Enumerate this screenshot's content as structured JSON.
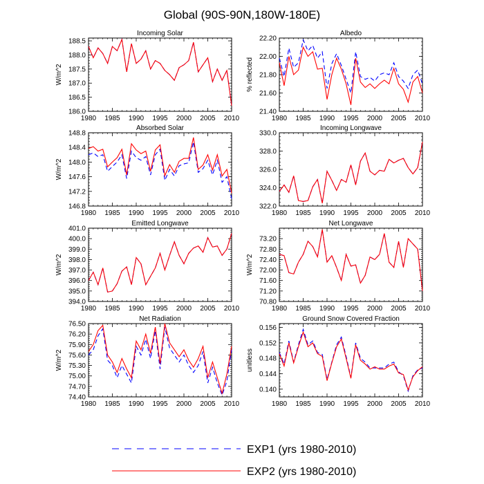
{
  "figure_title": "Global (90S-90N,180W-180E)",
  "legend": [
    {
      "label": "EXP1 (yrs 1980-2010)",
      "color": "#0000ff",
      "style": "dashed"
    },
    {
      "label": "EXP2 (yrs 1980-2010)",
      "color": "#ff0000",
      "style": "solid"
    }
  ],
  "chart_data": [
    {
      "type": "line",
      "title": "Incoming Solar",
      "xlabel": "",
      "ylabel": "W/m^2",
      "xlim": [
        1980,
        2010
      ],
      "ylim": [
        186.0,
        188.6
      ],
      "yticks": [
        "186.0",
        "186.5",
        "187.0",
        "187.5",
        "188.0",
        "188.5"
      ],
      "xticks": [
        "1980",
        "1985",
        "1990",
        "1995",
        "2000",
        "2005",
        "2010"
      ],
      "x": [
        1980,
        1981,
        1982,
        1983,
        1984,
        1985,
        1986,
        1987,
        1988,
        1989,
        1990,
        1991,
        1992,
        1993,
        1994,
        1995,
        1996,
        1997,
        1998,
        1999,
        2000,
        2001,
        2002,
        2003,
        2004,
        2005,
        2006,
        2007,
        2008,
        2009,
        2010
      ],
      "series": [
        {
          "name": "EXP1",
          "values": [
            188.3,
            187.9,
            188.25,
            188.05,
            187.7,
            188.3,
            188.15,
            188.55,
            187.4,
            188.4,
            187.7,
            187.85,
            188.15,
            187.5,
            187.8,
            187.7,
            187.45,
            187.3,
            187.1,
            187.55,
            187.65,
            187.8,
            188.45,
            187.4,
            187.65,
            187.9,
            187.05,
            187.5,
            187.1,
            187.45,
            186.2
          ]
        },
        {
          "name": "EXP2",
          "values": [
            188.3,
            187.9,
            188.25,
            188.05,
            187.7,
            188.3,
            188.15,
            188.55,
            187.4,
            188.4,
            187.7,
            187.85,
            188.15,
            187.5,
            187.8,
            187.7,
            187.45,
            187.3,
            187.1,
            187.55,
            187.65,
            187.8,
            188.45,
            187.4,
            187.65,
            187.9,
            187.05,
            187.5,
            187.1,
            187.45,
            186.2
          ]
        }
      ]
    },
    {
      "type": "line",
      "title": "Albedo",
      "xlabel": "",
      "ylabel": "% reflected",
      "xlim": [
        1980,
        2010
      ],
      "ylim": [
        21.4,
        22.2
      ],
      "yticks": [
        "21.40",
        "21.60",
        "21.80",
        "22.00",
        "22.20"
      ],
      "xticks": [
        "1980",
        "1985",
        "1990",
        "1995",
        "2000",
        "2005",
        "2010"
      ],
      "x": [
        1980,
        1981,
        1982,
        1983,
        1984,
        1985,
        1986,
        1987,
        1988,
        1989,
        1990,
        1991,
        1992,
        1993,
        1994,
        1995,
        1996,
        1997,
        1998,
        1999,
        2000,
        2001,
        2002,
        2003,
        2004,
        2005,
        2006,
        2007,
        2008,
        2009,
        2010
      ],
      "series": [
        {
          "name": "EXP1",
          "values": [
            21.98,
            21.78,
            22.09,
            21.88,
            21.93,
            22.18,
            22.06,
            22.12,
            21.98,
            22.05,
            21.65,
            21.92,
            22.03,
            21.9,
            21.75,
            21.6,
            22.05,
            21.78,
            21.75,
            21.77,
            21.73,
            21.8,
            21.82,
            21.8,
            21.93,
            21.78,
            21.73,
            21.65,
            21.8,
            21.85,
            21.7
          ]
        },
        {
          "name": "EXP2",
          "values": [
            21.93,
            21.68,
            22.0,
            21.8,
            21.85,
            22.1,
            22.0,
            22.05,
            21.86,
            21.87,
            21.53,
            21.8,
            21.98,
            21.86,
            21.7,
            21.47,
            21.98,
            21.72,
            21.66,
            21.7,
            21.65,
            21.7,
            21.74,
            21.7,
            21.87,
            21.7,
            21.64,
            21.5,
            21.72,
            21.78,
            21.6
          ]
        }
      ]
    },
    {
      "type": "line",
      "title": "Absorbed Solar",
      "xlabel": "",
      "ylabel": "W/m^2",
      "xlim": [
        1980,
        2010
      ],
      "ylim": [
        146.8,
        148.8
      ],
      "yticks": [
        "146.8",
        "147.2",
        "147.6",
        "148.0",
        "148.4",
        "148.8"
      ],
      "xticks": [
        "1980",
        "1985",
        "1990",
        "1995",
        "2000",
        "2005",
        "2010"
      ],
      "x": [
        1980,
        1981,
        1982,
        1983,
        1984,
        1985,
        1986,
        1987,
        1988,
        1989,
        1990,
        1991,
        1992,
        1993,
        1994,
        1995,
        1996,
        1997,
        1998,
        1999,
        2000,
        2001,
        2002,
        2003,
        2004,
        2005,
        2006,
        2007,
        2008,
        2009,
        2010
      ],
      "series": [
        {
          "name": "EXP1",
          "values": [
            148.2,
            148.25,
            148.15,
            148.2,
            147.75,
            147.88,
            148.0,
            148.2,
            147.55,
            148.3,
            148.12,
            148.05,
            148.15,
            147.65,
            148.2,
            148.35,
            147.5,
            147.8,
            147.62,
            147.9,
            147.95,
            147.98,
            148.55,
            147.72,
            147.82,
            148.05,
            147.65,
            148.05,
            147.45,
            147.6,
            147.0
          ]
        },
        {
          "name": "EXP2",
          "values": [
            148.37,
            148.42,
            148.3,
            148.35,
            147.87,
            148.0,
            148.12,
            148.35,
            147.65,
            148.5,
            148.33,
            148.23,
            148.3,
            147.75,
            148.33,
            148.47,
            147.63,
            147.93,
            147.72,
            148.02,
            148.1,
            148.1,
            148.67,
            147.8,
            147.92,
            148.2,
            147.78,
            148.2,
            147.62,
            147.8,
            147.15
          ]
        }
      ]
    },
    {
      "type": "line",
      "title": "Incoming Longwave",
      "xlabel": "",
      "ylabel": "",
      "xlim": [
        1980,
        2010
      ],
      "ylim": [
        322.0,
        330.0
      ],
      "yticks": [
        "322.0",
        "324.0",
        "326.0",
        "328.0",
        "330.0"
      ],
      "xticks": [
        "1980",
        "1985",
        "1990",
        "1995",
        "2000",
        "2005",
        "2010"
      ],
      "x": [
        1980,
        1981,
        1982,
        1983,
        1984,
        1985,
        1986,
        1987,
        1988,
        1989,
        1990,
        1991,
        1992,
        1993,
        1994,
        1995,
        1996,
        1997,
        1998,
        1999,
        2000,
        2001,
        2002,
        2003,
        2004,
        2005,
        2006,
        2007,
        2008,
        2009,
        2010
      ],
      "series": [
        {
          "name": "EXP1",
          "values": [
            323.6,
            324.3,
            323.5,
            325.3,
            322.6,
            322.5,
            322.6,
            324.1,
            324.9,
            322.3,
            325.8,
            324.8,
            323.7,
            324.9,
            324.6,
            326.5,
            324.3,
            326.9,
            327.8,
            325.8,
            325.4,
            325.9,
            325.8,
            327.1,
            326.7,
            327.0,
            327.2,
            326.2,
            325.5,
            326.2,
            329.0
          ]
        },
        {
          "name": "EXP2",
          "values": [
            323.6,
            324.3,
            323.5,
            325.3,
            322.6,
            322.5,
            322.6,
            324.1,
            324.9,
            322.3,
            325.8,
            324.8,
            323.7,
            324.9,
            324.6,
            326.5,
            324.3,
            326.9,
            327.8,
            325.8,
            325.4,
            325.9,
            325.8,
            327.1,
            326.7,
            327.0,
            327.2,
            326.2,
            325.5,
            326.2,
            329.0
          ]
        }
      ]
    },
    {
      "type": "line",
      "title": "Emitted Longwave",
      "xlabel": "",
      "ylabel": "W/m^2",
      "xlim": [
        1980,
        2010
      ],
      "ylim": [
        394.0,
        401.0
      ],
      "yticks": [
        "394.0",
        "395.0",
        "396.0",
        "397.0",
        "398.0",
        "399.0",
        "400.0",
        "401.0"
      ],
      "xticks": [
        "1980",
        "1985",
        "1990",
        "1995",
        "2000",
        "2005",
        "2010"
      ],
      "x": [
        1980,
        1981,
        1982,
        1983,
        1984,
        1985,
        1986,
        1987,
        1988,
        1989,
        1990,
        1991,
        1992,
        1993,
        1994,
        1995,
        1996,
        1997,
        1998,
        1999,
        2000,
        2001,
        2002,
        2003,
        2004,
        2005,
        2006,
        2007,
        2008,
        2009,
        2010
      ],
      "series": [
        {
          "name": "EXP1",
          "values": [
            396.0,
            396.8,
            395.6,
            397.2,
            394.9,
            395.0,
            395.7,
            396.9,
            397.3,
            395.6,
            398.2,
            397.6,
            395.6,
            396.4,
            397.2,
            398.6,
            397.0,
            398.4,
            399.7,
            398.4,
            397.6,
            398.6,
            399.1,
            399.3,
            398.7,
            400.1,
            399.2,
            399.3,
            398.4,
            399.0,
            400.5
          ]
        },
        {
          "name": "EXP2",
          "values": [
            396.0,
            396.8,
            395.6,
            397.2,
            394.9,
            395.0,
            395.7,
            396.9,
            397.3,
            395.6,
            398.2,
            397.6,
            395.6,
            396.4,
            397.2,
            398.6,
            397.0,
            398.4,
            399.7,
            398.4,
            397.6,
            398.6,
            399.1,
            399.3,
            398.7,
            400.1,
            399.2,
            399.3,
            398.4,
            399.0,
            400.5
          ]
        }
      ]
    },
    {
      "type": "line",
      "title": "Net Longwave",
      "xlabel": "",
      "ylabel": "W/m^2",
      "xlim": [
        1980,
        2010
      ],
      "ylim": [
        70.8,
        73.6
      ],
      "yticks": [
        "70.80",
        "71.20",
        "71.60",
        "72.00",
        "72.40",
        "72.80",
        "73.20"
      ],
      "xticks": [
        "1980",
        "1985",
        "1990",
        "1995",
        "2000",
        "2005",
        "2010"
      ],
      "x": [
        1980,
        1981,
        1982,
        1983,
        1984,
        1985,
        1986,
        1987,
        1988,
        1989,
        1990,
        1991,
        1992,
        1993,
        1994,
        1995,
        1996,
        1997,
        1998,
        1999,
        2000,
        2001,
        2002,
        2003,
        2004,
        2005,
        2006,
        2007,
        2008,
        2009,
        2010
      ],
      "series": [
        {
          "name": "EXP1",
          "values": [
            72.6,
            72.55,
            71.9,
            71.85,
            72.3,
            72.6,
            73.1,
            72.9,
            72.5,
            73.55,
            72.3,
            72.55,
            72.1,
            71.6,
            72.6,
            72.15,
            72.2,
            71.5,
            71.8,
            72.5,
            72.4,
            72.6,
            73.4,
            72.3,
            72.1,
            73.1,
            72.1,
            73.2,
            73.0,
            72.8,
            71.2
          ]
        },
        {
          "name": "EXP2",
          "values": [
            72.6,
            72.55,
            71.9,
            71.85,
            72.3,
            72.6,
            73.1,
            72.9,
            72.5,
            73.55,
            72.3,
            72.55,
            72.1,
            71.6,
            72.6,
            72.15,
            72.2,
            71.5,
            71.8,
            72.5,
            72.4,
            72.6,
            73.4,
            72.3,
            72.1,
            73.1,
            72.1,
            73.2,
            73.0,
            72.8,
            71.2
          ]
        }
      ]
    },
    {
      "type": "line",
      "title": "Net Radiation",
      "xlabel": "",
      "ylabel": "W/m^2",
      "xlim": [
        1980,
        2010
      ],
      "ylim": [
        74.4,
        76.5
      ],
      "yticks": [
        "74.40",
        "74.70",
        "75.00",
        "75.30",
        "75.60",
        "75.90",
        "76.20",
        "76.50"
      ],
      "xticks": [
        "1980",
        "1985",
        "1990",
        "1995",
        "2000",
        "2005",
        "2010"
      ],
      "x": [
        1980,
        1981,
        1982,
        1983,
        1984,
        1985,
        1986,
        1987,
        1988,
        1989,
        1990,
        1991,
        1992,
        1993,
        1994,
        1995,
        1996,
        1997,
        1998,
        1999,
        2000,
        2001,
        2002,
        2003,
        2004,
        2005,
        2006,
        2007,
        2008,
        2009,
        2010
      ],
      "series": [
        {
          "name": "EXP1",
          "values": [
            75.6,
            75.75,
            76.15,
            76.35,
            75.45,
            75.3,
            74.95,
            75.3,
            75.05,
            74.8,
            75.85,
            75.6,
            76.05,
            75.5,
            76.3,
            75.2,
            76.4,
            75.8,
            75.6,
            75.4,
            75.6,
            75.3,
            75.1,
            75.3,
            75.7,
            74.8,
            75.25,
            74.8,
            74.45,
            74.85,
            75.75
          ]
        },
        {
          "name": "EXP2",
          "values": [
            75.7,
            75.9,
            76.3,
            76.45,
            75.6,
            75.4,
            75.1,
            75.5,
            75.2,
            74.95,
            76.0,
            75.75,
            76.2,
            75.65,
            76.4,
            75.35,
            76.5,
            75.95,
            75.75,
            75.55,
            75.75,
            75.45,
            75.25,
            75.5,
            75.85,
            74.95,
            75.4,
            74.95,
            74.5,
            75.05,
            75.85
          ]
        }
      ]
    },
    {
      "type": "line",
      "title": "Ground Snow Covered Fraction",
      "xlabel": "",
      "ylabel": "unitless",
      "xlim": [
        1980,
        2010
      ],
      "ylim": [
        0.138,
        0.157
      ],
      "yticks": [
        "0.140",
        "0.144",
        "0.148",
        "0.152",
        "0.156"
      ],
      "xticks": [
        "1980",
        "1985",
        "1990",
        "1995",
        "2000",
        "2005",
        "2010"
      ],
      "x": [
        1980,
        1981,
        1982,
        1983,
        1984,
        1985,
        1986,
        1987,
        1988,
        1989,
        1990,
        1991,
        1992,
        1993,
        1994,
        1995,
        1996,
        1997,
        1998,
        1999,
        2000,
        2001,
        2002,
        2003,
        2004,
        2005,
        2006,
        2007,
        2008,
        2009,
        2010
      ],
      "series": [
        {
          "name": "EXP1",
          "values": [
            0.1495,
            0.1465,
            0.1525,
            0.147,
            0.1515,
            0.1555,
            0.1515,
            0.1525,
            0.1495,
            0.149,
            0.1425,
            0.147,
            0.1515,
            0.1535,
            0.1485,
            0.143,
            0.152,
            0.148,
            0.147,
            0.1455,
            0.1455,
            0.1455,
            0.1455,
            0.1465,
            0.147,
            0.1445,
            0.1435,
            0.1395,
            0.1435,
            0.145,
            0.1455
          ]
        },
        {
          "name": "EXP2",
          "values": [
            0.1492,
            0.146,
            0.152,
            0.1468,
            0.151,
            0.1548,
            0.151,
            0.152,
            0.1492,
            0.1485,
            0.1422,
            0.1468,
            0.151,
            0.153,
            0.148,
            0.1428,
            0.1515,
            0.1475,
            0.1465,
            0.1452,
            0.1458,
            0.1452,
            0.1452,
            0.146,
            0.1465,
            0.1442,
            0.1438,
            0.1398,
            0.1432,
            0.1448,
            0.1458
          ]
        }
      ]
    }
  ]
}
